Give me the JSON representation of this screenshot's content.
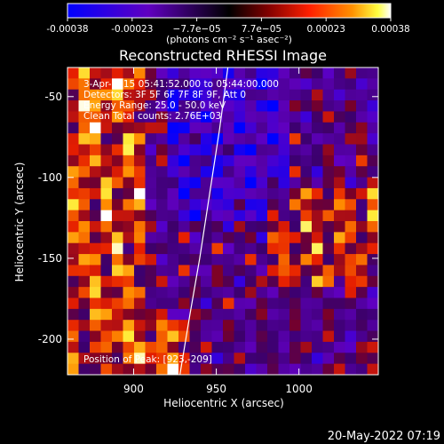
{
  "chart_data": {
    "type": "heatmap",
    "title": "Reconstructed RHESSI Image",
    "xlabel": "Heliocentric X (arcsec)",
    "ylabel": "Heliocentric Y (arcsec)",
    "xlim": [
      860,
      1048
    ],
    "ylim": [
      -222,
      -32
    ],
    "x_ticks": [
      900,
      950,
      1000
    ],
    "y_ticks": [
      -50,
      -100,
      -150,
      -200
    ],
    "colorbar": {
      "ticks": [
        "-0.00038",
        "-0.00023",
        "−7.7e−05",
        "7.7e−05",
        "0.00023",
        "0.00038"
      ],
      "unit_label": "(photons cm⁻² s⁻¹ asec⁻²)",
      "range": [
        -0.00038,
        0.00038
      ],
      "colormap": [
        "#0000ff",
        "#6000c0",
        "#000000",
        "#800000",
        "#ff0000",
        "#ff8000",
        "#ffff00",
        "#ffffff"
      ]
    },
    "annotations": [
      "3-Apr-2015 05:41:52.000 to 05:44:00.000",
      "Detectors: 3F 5F 6F 7F 8F 9F, Att 0",
      "Energy Range: 25.0 - 50.0 keV",
      "Clean     Total counts: 2.76E+03"
    ],
    "peak_label": "Position of Peak: [923,-209]",
    "limb_curve": [
      [
        957,
        -32
      ],
      [
        952,
        -70
      ],
      [
        946,
        -110
      ],
      [
        940,
        -150
      ],
      [
        934,
        -185
      ],
      [
        928,
        -222
      ]
    ],
    "grid_size": [
      28,
      28
    ],
    "grid_values": []
  },
  "footer": {
    "timestamp": "20-May-2022 07:19"
  }
}
